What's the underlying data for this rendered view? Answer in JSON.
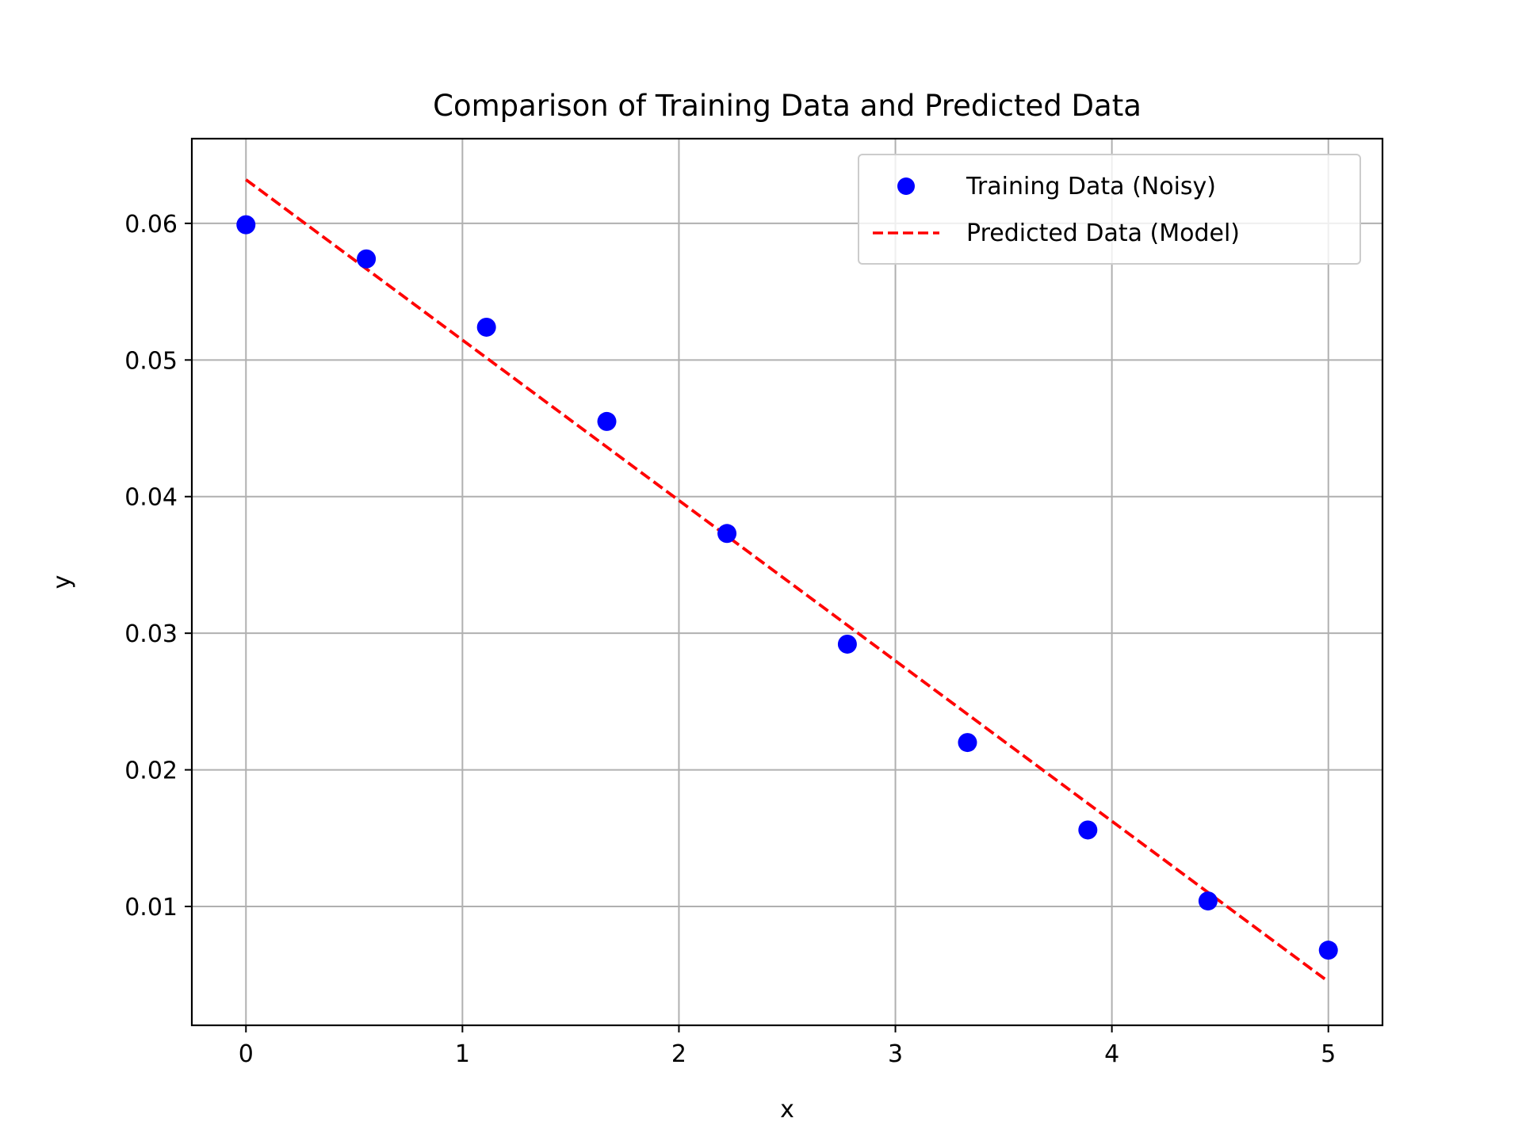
{
  "chart_data": {
    "type": "scatter",
    "title": "Comparison of Training Data and Predicted Data",
    "xlabel": "x",
    "ylabel": "y",
    "xlim": [
      -0.25,
      5.25
    ],
    "ylim": [
      0.0013,
      0.0662
    ],
    "xticks": [
      0,
      1,
      2,
      3,
      4,
      5
    ],
    "xtick_labels": [
      "0",
      "1",
      "2",
      "3",
      "4",
      "5"
    ],
    "yticks": [
      0.01,
      0.02,
      0.03,
      0.04,
      0.05,
      0.06
    ],
    "ytick_labels": [
      "0.01",
      "0.02",
      "0.03",
      "0.04",
      "0.05",
      "0.06"
    ],
    "grid": true,
    "legend_position": "top-right",
    "series": [
      {
        "name": "Training Data (Noisy)",
        "kind": "scatter",
        "color": "#0000ff",
        "x": [
          0.0,
          0.556,
          1.111,
          1.667,
          2.222,
          2.778,
          3.333,
          3.889,
          4.444,
          5.0
        ],
        "y": [
          0.0599,
          0.0574,
          0.0524,
          0.0455,
          0.0373,
          0.0292,
          0.022,
          0.0156,
          0.0104,
          0.0068
        ]
      },
      {
        "name": "Predicted Data (Model)",
        "kind": "line",
        "style": "dashed",
        "color": "#ff0000",
        "x": [
          0.0,
          5.0
        ],
        "y": [
          0.0632,
          0.0045
        ]
      }
    ]
  }
}
